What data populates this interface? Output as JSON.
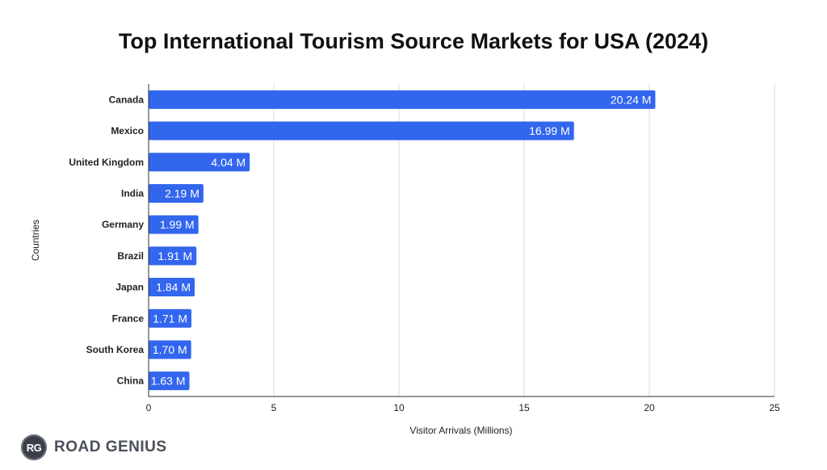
{
  "brand": {
    "badge": "RG",
    "name": "ROAD GENIUS"
  },
  "colors": {
    "bar": "#3366ee",
    "grid": "#d9d9d9",
    "axis": "#333333",
    "text": "#222222",
    "label": "#ffffff"
  },
  "chart_data": {
    "type": "bar",
    "orientation": "horizontal",
    "title": "Top International Tourism Source Markets for USA (2024)",
    "xlabel": "Visitor Arrivals (Millions)",
    "ylabel": "Countries",
    "categories": [
      "Canada",
      "Mexico",
      "United Kingdom",
      "India",
      "Germany",
      "Brazil",
      "Japan",
      "France",
      "South Korea",
      "China"
    ],
    "values": [
      20.24,
      16.99,
      4.04,
      2.19,
      1.99,
      1.91,
      1.84,
      1.71,
      1.7,
      1.63
    ],
    "value_labels": [
      "20.24 M",
      "16.99 M",
      "4.04 M",
      "2.19 M",
      "1.99 M",
      "1.91 M",
      "1.84 M",
      "1.71 M",
      "1.70 M",
      "1.63 M"
    ],
    "xlim": [
      0,
      25
    ],
    "xticks": [
      0,
      5,
      10,
      15,
      20,
      25
    ],
    "grid": true,
    "legend": "none"
  }
}
